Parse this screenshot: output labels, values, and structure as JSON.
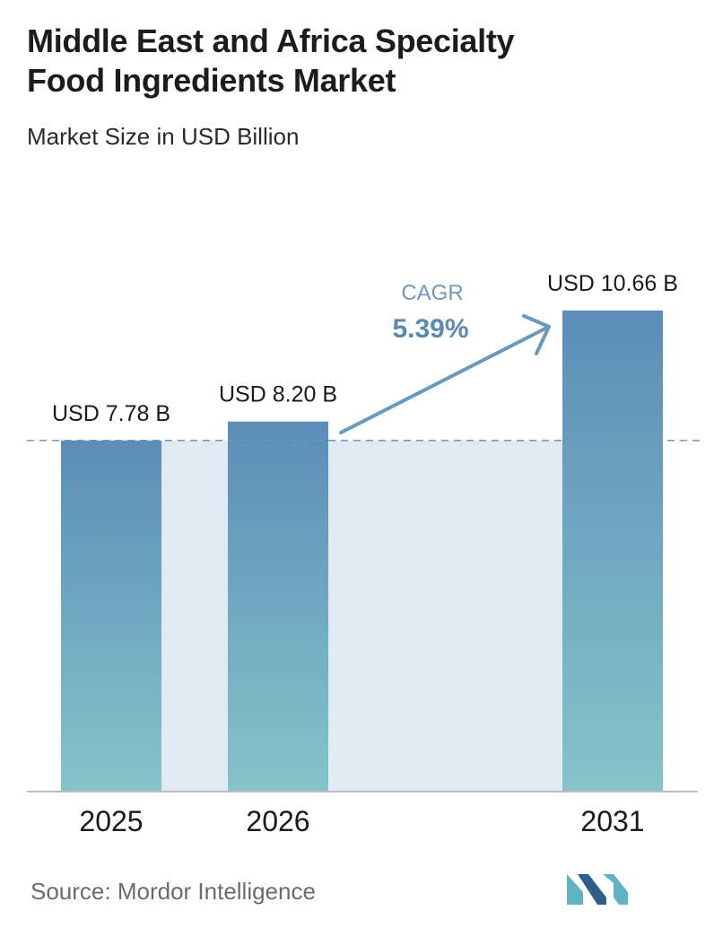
{
  "header": {
    "title_line1": "Middle East and Africa Specialty",
    "title_line2": "Food Ingredients Market",
    "subtitle": "Market Size in USD Billion"
  },
  "footer": {
    "source": "Source:  Mordor Intelligence"
  },
  "colors": {
    "bar_top": "#5b8db8",
    "bar_bottom": "#84c4c9",
    "band": "#e1e9f2",
    "dashed_line": "#6f97b8",
    "cagr_text": "#6f97b8",
    "cagr_value": "#5889b3",
    "arrow": "#6a98bd",
    "logo_dark": "#2c5f8a",
    "logo_light": "#5fb3c4"
  },
  "chart_data": {
    "type": "bar",
    "categories": [
      "2025",
      "2026",
      "2031"
    ],
    "values": [
      7.78,
      8.2,
      10.66
    ],
    "data_labels": [
      "USD 7.78 B",
      "USD 8.20 B",
      "USD 10.66 B"
    ],
    "ylim": [
      0,
      10.66
    ],
    "grid": false,
    "cagr": {
      "label": "CAGR",
      "value": "5.39%"
    }
  }
}
